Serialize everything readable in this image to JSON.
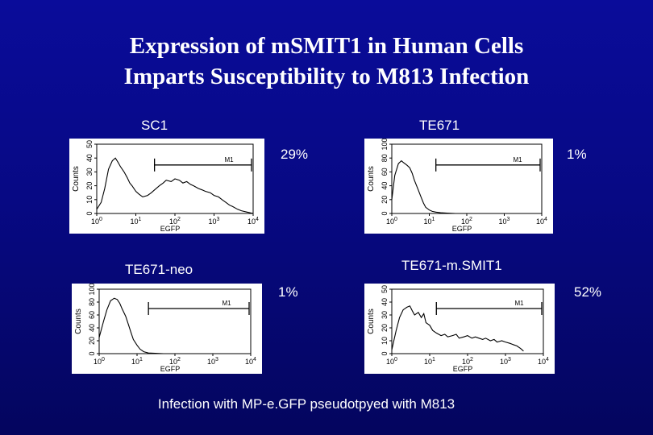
{
  "title_line1": "Expression of mSMIT1 in Human Cells",
  "title_line2": "Imparts Susceptibility to M813 Infection",
  "footer": "Infection with MP-e.GFP pseudotpyed with M813",
  "panels": [
    {
      "name": "SC1",
      "percent": "29%"
    },
    {
      "name": "TE671",
      "percent": "1%"
    },
    {
      "name": "TE671-neo",
      "percent": "1%"
    },
    {
      "name": "TE671-m.SMIT1",
      "percent": "52%"
    }
  ],
  "chart_data": [
    {
      "type": "line",
      "title": "SC1",
      "xlabel": "EGFP",
      "ylabel": "Counts",
      "x_scale": "log",
      "xlim": [
        1,
        10000
      ],
      "x_ticks": [
        "10",
        "10",
        "10",
        "10",
        "10"
      ],
      "x_tick_exp": [
        "0",
        "1",
        "2",
        "3",
        "4"
      ],
      "y_ticks": [
        "0",
        "10",
        "20",
        "30",
        "40",
        "50"
      ],
      "ylim": [
        0,
        50
      ],
      "gate_label": "M1",
      "gate_range": [
        30,
        10000
      ],
      "x": [
        1,
        1.3,
        1.6,
        2,
        2.5,
        3,
        3.5,
        4,
        5,
        6,
        7,
        8,
        10,
        12,
        15,
        20,
        25,
        30,
        40,
        50,
        60,
        80,
        100,
        130,
        160,
        200,
        250,
        300,
        400,
        500,
        600,
        800,
        1000,
        1300,
        1600,
        2000,
        2500,
        3000,
        4000,
        5000,
        7000,
        10000
      ],
      "y": [
        3,
        8,
        18,
        32,
        38,
        40,
        37,
        34,
        30,
        26,
        22,
        20,
        16,
        14,
        12,
        13,
        15,
        17,
        20,
        22,
        24,
        23,
        25,
        24,
        22,
        23,
        21,
        20,
        18,
        17,
        16,
        15,
        13,
        12,
        10,
        8,
        6,
        5,
        3,
        2,
        1,
        0
      ]
    },
    {
      "type": "line",
      "title": "TE671",
      "xlabel": "EGFP",
      "ylabel": "Counts",
      "x_scale": "log",
      "xlim": [
        1,
        10000
      ],
      "x_ticks": [
        "10",
        "10",
        "10",
        "10",
        "10"
      ],
      "x_tick_exp": [
        "0",
        "1",
        "2",
        "3",
        "4"
      ],
      "y_ticks": [
        "0",
        "20",
        "40",
        "60",
        "80",
        "100"
      ],
      "ylim": [
        0,
        100
      ],
      "gate_label": "M1",
      "gate_range": [
        15,
        10000
      ],
      "x": [
        1,
        1.2,
        1.5,
        1.8,
        2,
        2.5,
        3,
        3.5,
        4,
        5,
        6,
        7,
        8,
        10,
        12,
        15,
        20,
        30,
        50,
        100,
        1000,
        10000
      ],
      "y": [
        20,
        55,
        72,
        76,
        74,
        70,
        66,
        58,
        48,
        35,
        24,
        15,
        9,
        5,
        3,
        2,
        1,
        0.5,
        0,
        0,
        0,
        0
      ]
    },
    {
      "type": "line",
      "title": "TE671-neo",
      "xlabel": "EGFP",
      "ylabel": "Counts",
      "x_scale": "log",
      "xlim": [
        1,
        10000
      ],
      "x_ticks": [
        "10",
        "10",
        "10",
        "10",
        "10"
      ],
      "x_tick_exp": [
        "0",
        "1",
        "2",
        "3",
        "4"
      ],
      "y_ticks": [
        "0",
        "20",
        "40",
        "60",
        "80",
        "100"
      ],
      "ylim": [
        0,
        100
      ],
      "gate_label": "M1",
      "gate_range": [
        20,
        10000
      ],
      "x": [
        1,
        1.3,
        1.6,
        2,
        2.5,
        3,
        3.5,
        4,
        5,
        6,
        7,
        8,
        10,
        12,
        15,
        20,
        30,
        50,
        100,
        1000,
        10000
      ],
      "y": [
        25,
        50,
        68,
        82,
        86,
        84,
        78,
        70,
        58,
        44,
        32,
        22,
        13,
        7,
        3,
        1,
        0.5,
        0,
        0,
        0,
        0
      ]
    },
    {
      "type": "line",
      "title": "TE671-m.SMIT1",
      "xlabel": "EGFP",
      "ylabel": "Counts",
      "x_scale": "log",
      "xlim": [
        1,
        10000
      ],
      "x_ticks": [
        "10",
        "10",
        "10",
        "10",
        "10"
      ],
      "x_tick_exp": [
        "0",
        "1",
        "2",
        "3",
        "4"
      ],
      "y_ticks": [
        "0",
        "10",
        "20",
        "30",
        "40",
        "50"
      ],
      "ylim": [
        0,
        50
      ],
      "gate_label": "M1",
      "gate_range": [
        15,
        10000
      ],
      "x": [
        1,
        1.3,
        1.6,
        2,
        2.5,
        3,
        3.5,
        4,
        5,
        6,
        7,
        8,
        10,
        12,
        15,
        20,
        25,
        30,
        40,
        50,
        60,
        80,
        100,
        130,
        160,
        200,
        250,
        300,
        400,
        500,
        600,
        800,
        1000,
        1300,
        1600,
        2000,
        2500,
        3000
      ],
      "y": [
        3,
        18,
        28,
        34,
        36,
        37,
        33,
        30,
        32,
        28,
        31,
        24,
        22,
        18,
        16,
        14,
        15,
        13,
        14,
        15,
        12,
        13,
        14,
        12,
        13,
        12,
        11,
        12,
        10,
        11,
        9,
        10,
        9,
        8,
        7,
        6,
        4,
        2
      ]
    }
  ]
}
